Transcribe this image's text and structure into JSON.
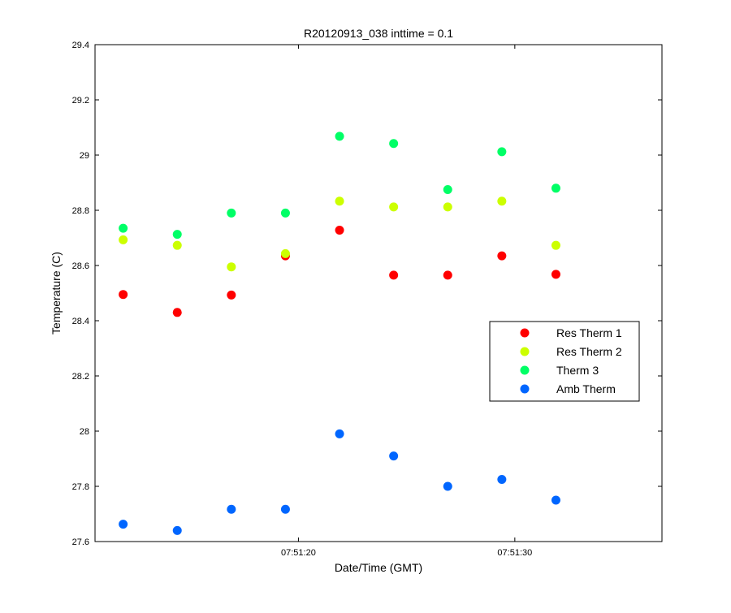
{
  "chart_data": {
    "type": "scatter",
    "title": "R20120913_038 inttime = 0.1",
    "xlabel": "Date/Time (GMT)",
    "ylabel": "Temperature (C)",
    "xlim": [
      "07:51:10.6",
      "07:51:36.8"
    ],
    "ylim": [
      27.6,
      29.4
    ],
    "xticks": [
      "07:51:20",
      "07:51:30"
    ],
    "yticks": [
      "27.6",
      "27.8",
      "28",
      "28.2",
      "28.4",
      "28.6",
      "28.8",
      "29",
      "29.2",
      "29.4"
    ],
    "x": [
      "07:51:11.9",
      "07:51:14.4",
      "07:51:16.9",
      "07:51:19.4",
      "07:51:21.9",
      "07:51:24.4",
      "07:51:26.9",
      "07:51:29.4",
      "07:51:31.9"
    ],
    "series": [
      {
        "name": "Res Therm 1",
        "color": "#ff0000",
        "values": [
          28.495,
          28.43,
          28.493,
          28.635,
          28.728,
          28.565,
          28.565,
          28.635,
          28.568
        ]
      },
      {
        "name": "Res Therm 2",
        "color": "#ccff00",
        "values": [
          28.693,
          28.673,
          28.595,
          28.643,
          28.833,
          28.812,
          28.812,
          28.833,
          28.673
        ]
      },
      {
        "name": "Therm 3",
        "color": "#00ff66",
        "values": [
          28.735,
          28.713,
          28.79,
          28.79,
          29.068,
          29.042,
          28.875,
          29.012,
          28.88
        ]
      },
      {
        "name": "Amb Therm",
        "color": "#0066ff",
        "values": [
          27.663,
          27.64,
          27.717,
          27.717,
          27.99,
          27.91,
          27.8,
          27.825,
          27.75
        ]
      }
    ],
    "legend_position": "right",
    "grid": false
  }
}
